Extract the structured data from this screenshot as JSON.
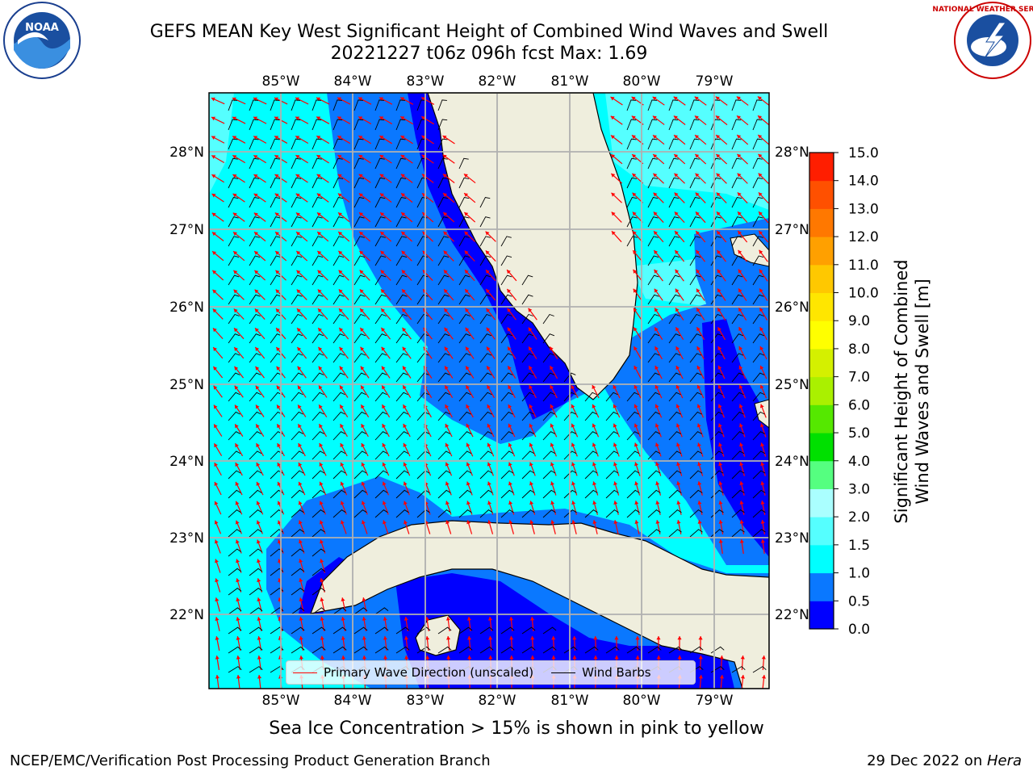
{
  "title_line1": "GEFS MEAN Key West Significant Height of Combined Wind Waves and Swell",
  "title_line2": "20221227 t06z 096h fcst   Max: 1.69",
  "logos": {
    "left": "NOAA",
    "right": "NATIONAL WEATHER SERVICE"
  },
  "lon_labels": [
    "85°W",
    "84°W",
    "83°W",
    "82°W",
    "81°W",
    "80°W",
    "79°W"
  ],
  "lat_labels": [
    "28°N",
    "27°N",
    "26°N",
    "25°N",
    "24°N",
    "23°N",
    "22°N"
  ],
  "legend": {
    "wave_label": "Primary Wave Direction (unscaled)",
    "wind_label": "Wind Barbs",
    "wave_color": "#ff0000",
    "wind_color": "#000000"
  },
  "colorbar": {
    "label_line1": "Significant Height of Combined",
    "label_line2": "Wind Waves and Swell [m]",
    "ticks": [
      "0.0",
      "0.5",
      "1.0",
      "1.5",
      "2.0",
      "3.0",
      "4.0",
      "5.0",
      "6.0",
      "7.0",
      "8.0",
      "9.0",
      "10.0",
      "11.0",
      "12.0",
      "13.0",
      "14.0",
      "15.0"
    ],
    "colors": [
      "#0000ff",
      "#0a78ff",
      "#00ffff",
      "#55ffff",
      "#aaffff",
      "#55ff80",
      "#00e000",
      "#55e800",
      "#aaf000",
      "#d4f000",
      "#ffff00",
      "#ffe600",
      "#ffc800",
      "#ffa000",
      "#ff7800",
      "#ff5000",
      "#ff1e00"
    ]
  },
  "land_color": "#efeedd",
  "subtitle": "Sea Ice Concentration > 15% is shown in pink to yellow",
  "footer_left": "NCEP/EMC/Verification Post Processing Product Generation Branch",
  "footer_right_date": "29 Dec 2022 on ",
  "footer_right_host": "Hera"
}
